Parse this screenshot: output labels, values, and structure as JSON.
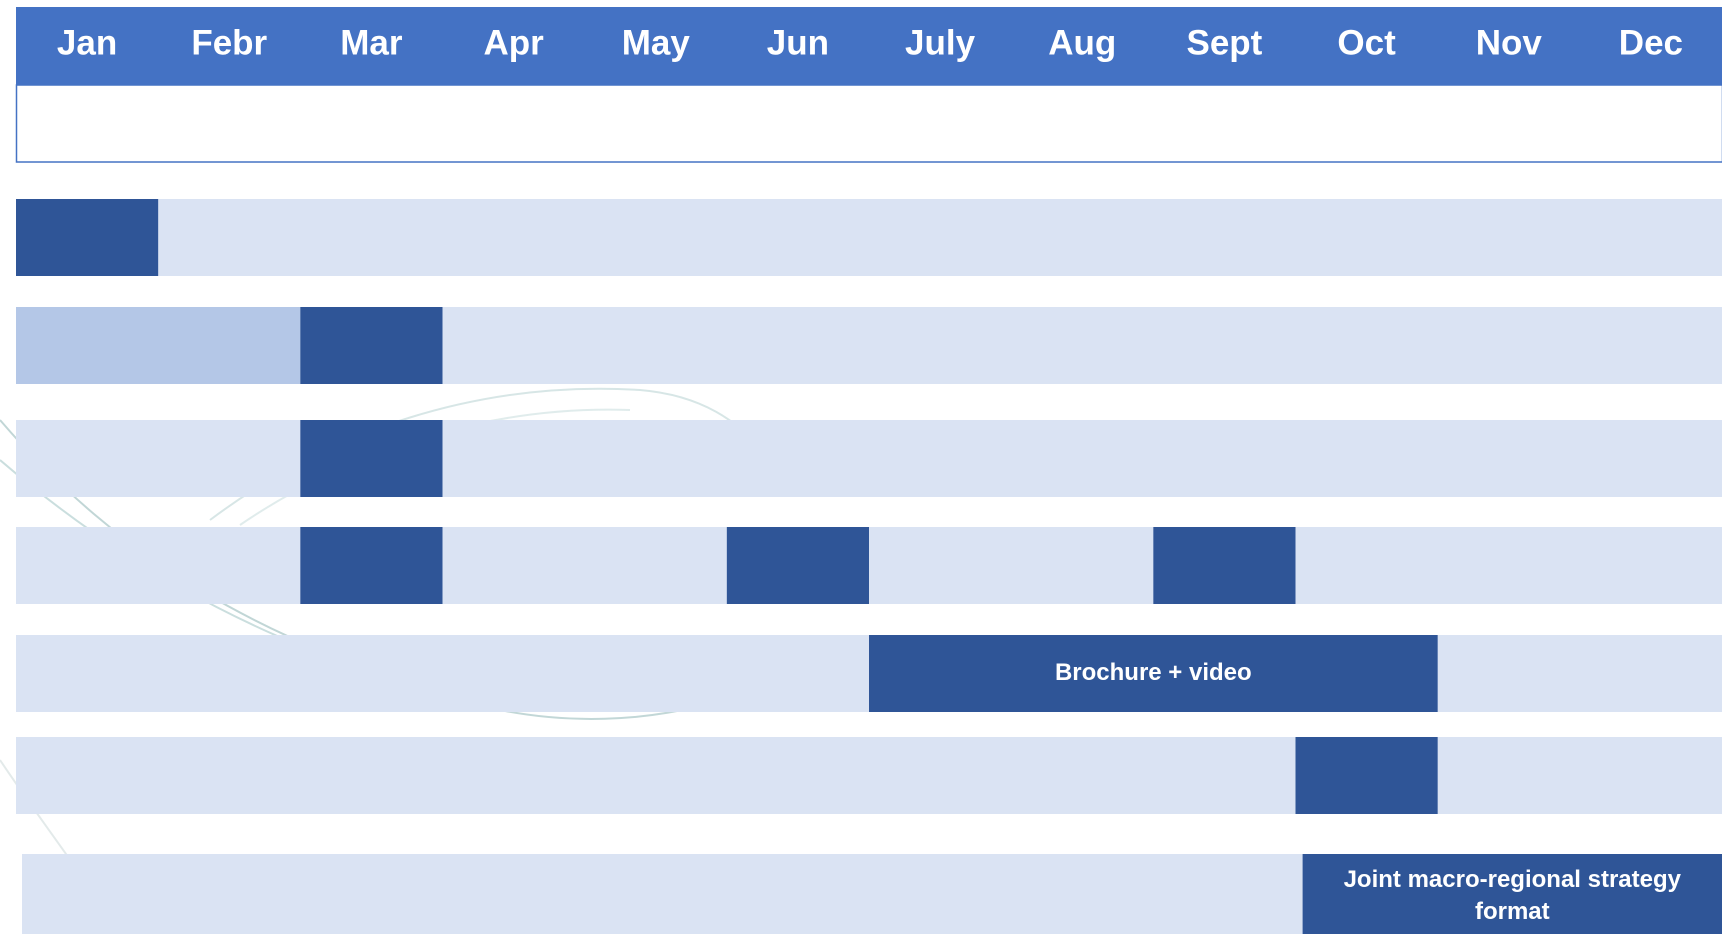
{
  "header": {
    "months": [
      "Jan",
      "Febr",
      "Mar",
      "Apr",
      "May",
      "Jun",
      "July",
      "Aug",
      "Sept",
      "Oct",
      "Nov",
      "Dec"
    ]
  },
  "rows": [
    {
      "label": null
    },
    {
      "label": null
    },
    {
      "label": null
    },
    {
      "label": null
    },
    {
      "label": "Brochure + video"
    },
    {
      "label": null
    },
    {
      "label": "Joint macro-regional strategy format"
    }
  ]
}
